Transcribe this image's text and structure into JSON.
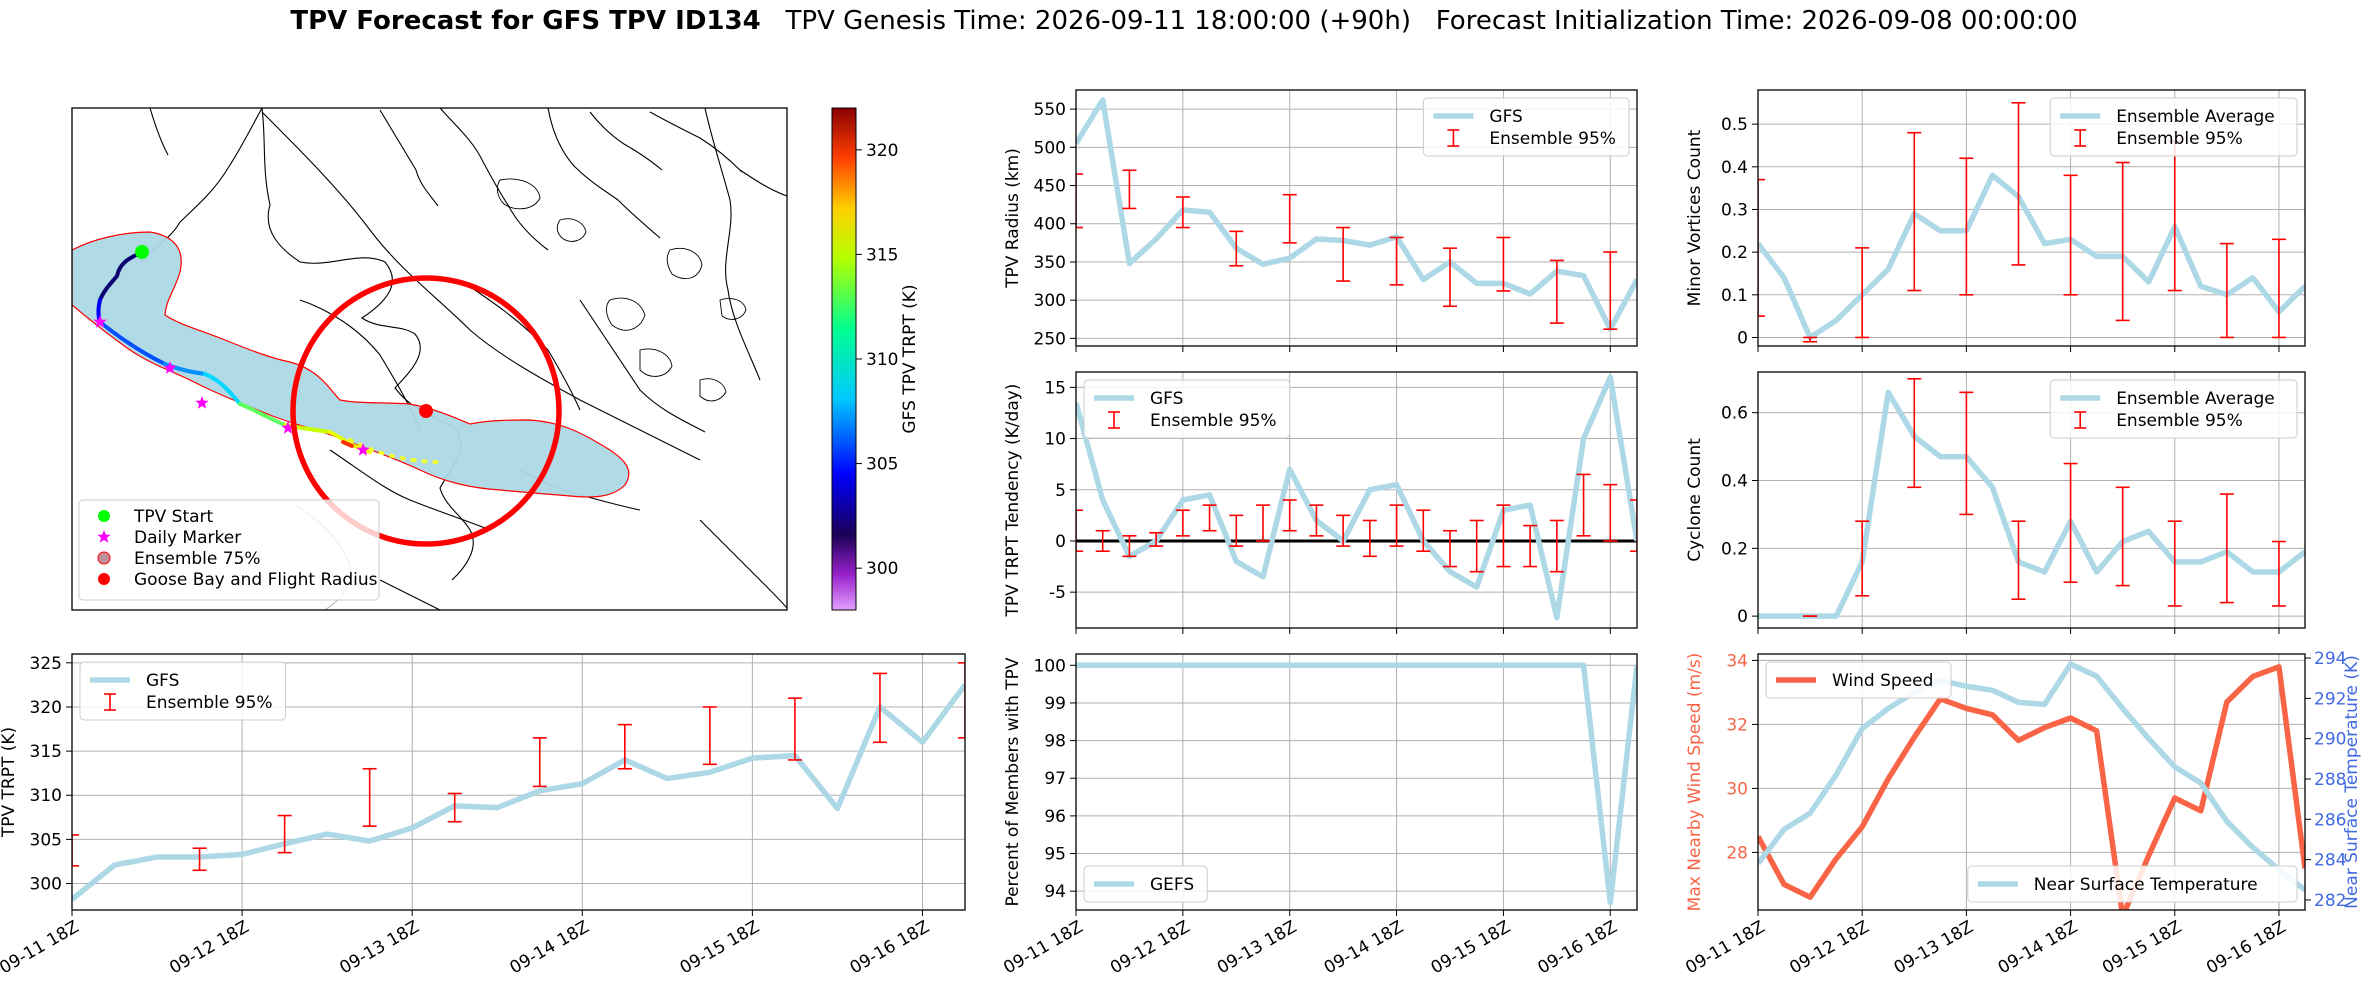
{
  "header": {
    "title_bold": "TPV Forecast for GFS TPV ID134",
    "title_genesis": "TPV Genesis Time: 2026-09-11 18:00:00 (+90h)",
    "title_init": "Forecast Initialization Time: 2026-09-08 00:00:00"
  },
  "colors": {
    "gfs_line": "#add8e6",
    "errorbar": "#ff0000",
    "wind": "#fa6446",
    "temp_axis": "#4169e1",
    "land_fill": "#add8e6"
  },
  "time_ticks": [
    "09-11 18Z",
    "09-12 18Z",
    "09-13 18Z",
    "09-14 18Z",
    "09-15 18Z",
    "09-16 18Z"
  ],
  "chart_data": [
    {
      "id": "map",
      "type": "map",
      "colorbar": {
        "label": "GFS TPV TRPT (K)",
        "ticks": [
          300,
          305,
          310,
          315,
          320
        ],
        "range": [
          298,
          322
        ]
      },
      "legend": {
        "placement": "lower-left",
        "entries": [
          {
            "label": "TPV Start",
            "marker": "circle",
            "color": "#00ff00"
          },
          {
            "label": "Daily Marker",
            "marker": "star",
            "color": "#ff00ff"
          },
          {
            "label": "Ensemble 75%",
            "marker": "circle",
            "color": "#c0909a"
          },
          {
            "label": "Goose Bay and Flight Radius",
            "marker": "circle",
            "color": "#ff0000"
          }
        ]
      }
    },
    {
      "id": "trpt",
      "type": "line",
      "ylabel": "TPV TRPT (K)",
      "ylim": [
        297,
        326
      ],
      "yticks": [
        300,
        305,
        310,
        315,
        320,
        325
      ],
      "legend_placement": "upper-left",
      "series": [
        {
          "name": "GFS",
          "values": [
            298.2,
            302.1,
            303.0,
            303.0,
            303.3,
            304.5,
            305.6,
            304.8,
            306.3,
            308.8,
            308.6,
            310.5,
            311.3,
            314.0,
            311.9,
            312.6,
            314.2,
            314.5,
            308.5,
            320.0,
            316.0,
            322.5
          ]
        }
      ],
      "errorbars": {
        "name": "Ensemble 95%",
        "points": [
          {
            "x": 0,
            "low": 302.0,
            "high": 305.5
          },
          {
            "x": 3,
            "low": 301.5,
            "high": 304.0
          },
          {
            "x": 5,
            "low": 303.5,
            "high": 307.7
          },
          {
            "x": 7,
            "low": 306.5,
            "high": 313.0
          },
          {
            "x": 9,
            "low": 307.0,
            "high": 310.2
          },
          {
            "x": 11,
            "low": 311.0,
            "high": 316.5
          },
          {
            "x": 13,
            "low": 313.0,
            "high": 318.0
          },
          {
            "x": 15,
            "low": 313.5,
            "high": 320.0
          },
          {
            "x": 17,
            "low": 314.0,
            "high": 321.0
          },
          {
            "x": 19,
            "low": 316.0,
            "high": 323.8
          },
          {
            "x": 21,
            "low": 316.5,
            "high": 325.0
          }
        ]
      }
    },
    {
      "id": "radius",
      "type": "line",
      "ylabel": "TPV Radius (km)",
      "ylim": [
        240,
        575
      ],
      "yticks": [
        250,
        300,
        350,
        400,
        450,
        500,
        550
      ],
      "legend_placement": "upper-right",
      "series": [
        {
          "name": "GFS",
          "values": [
            505,
            562,
            348,
            380,
            418,
            415,
            368,
            347,
            355,
            380,
            378,
            372,
            383,
            327,
            350,
            322,
            322,
            308,
            338,
            332,
            262,
            327
          ]
        }
      ],
      "errorbars": {
        "name": "Ensemble 95%",
        "points": [
          {
            "x": 0,
            "low": 395,
            "high": 465
          },
          {
            "x": 2,
            "low": 420,
            "high": 470
          },
          {
            "x": 4,
            "low": 395,
            "high": 435
          },
          {
            "x": 6,
            "low": 345,
            "high": 390
          },
          {
            "x": 8,
            "low": 375,
            "high": 438
          },
          {
            "x": 10,
            "low": 325,
            "high": 395
          },
          {
            "x": 12,
            "low": 320,
            "high": 382
          },
          {
            "x": 14,
            "low": 292,
            "high": 368
          },
          {
            "x": 16,
            "low": 312,
            "high": 382
          },
          {
            "x": 18,
            "low": 270,
            "high": 352
          },
          {
            "x": 20,
            "low": 262,
            "high": 363
          }
        ]
      }
    },
    {
      "id": "tendency",
      "type": "line",
      "ylabel": "TPV TRPT Tendency (K/day)",
      "ylim": [
        -8.5,
        16.5
      ],
      "yticks": [
        -5,
        0,
        5,
        10,
        15
      ],
      "zero_line": true,
      "legend_placement": "upper-left",
      "series": [
        {
          "name": "GFS",
          "values": [
            13.5,
            4.0,
            -1.5,
            0.0,
            4.0,
            4.5,
            -2.0,
            -3.5,
            7.0,
            2.0,
            0.0,
            5.0,
            5.5,
            0.0,
            -3.0,
            -4.5,
            3.0,
            3.5,
            -7.5,
            10.0,
            16.0,
            0.0
          ]
        }
      ],
      "errorbars": {
        "name": "Ensemble 95%",
        "points": [
          {
            "x": 0,
            "low": -1.0,
            "high": 3.0
          },
          {
            "x": 1,
            "low": -1.0,
            "high": 1.0
          },
          {
            "x": 2,
            "low": -1.5,
            "high": 0.5
          },
          {
            "x": 3,
            "low": -0.5,
            "high": 0.8
          },
          {
            "x": 4,
            "low": 0.5,
            "high": 3.0
          },
          {
            "x": 5,
            "low": 1.0,
            "high": 3.5
          },
          {
            "x": 6,
            "low": -0.5,
            "high": 2.5
          },
          {
            "x": 7,
            "low": 0.0,
            "high": 3.5
          },
          {
            "x": 8,
            "low": 1.0,
            "high": 4.0
          },
          {
            "x": 9,
            "low": 0.5,
            "high": 3.5
          },
          {
            "x": 10,
            "low": -0.5,
            "high": 2.5
          },
          {
            "x": 11,
            "low": -1.5,
            "high": 2.0
          },
          {
            "x": 12,
            "low": -0.5,
            "high": 3.5
          },
          {
            "x": 13,
            "low": -1.0,
            "high": 3.0
          },
          {
            "x": 14,
            "low": -2.5,
            "high": 1.0
          },
          {
            "x": 15,
            "low": -3.0,
            "high": 2.0
          },
          {
            "x": 16,
            "low": -2.5,
            "high": 3.5
          },
          {
            "x": 17,
            "low": -2.5,
            "high": 1.5
          },
          {
            "x": 18,
            "low": -3.0,
            "high": 2.0
          },
          {
            "x": 19,
            "low": 0.5,
            "high": 6.5
          },
          {
            "x": 20,
            "low": 0.0,
            "high": 5.5
          },
          {
            "x": 21,
            "low": -1.0,
            "high": 4.0
          }
        ]
      }
    },
    {
      "id": "percent",
      "type": "line",
      "ylabel": "Percent of Members with TPV",
      "ylim": [
        93.5,
        100.3
      ],
      "yticks": [
        94,
        95,
        96,
        97,
        98,
        99,
        100
      ],
      "legend_placement": "lower-left",
      "series": [
        {
          "name": "GEFS",
          "values": [
            100,
            100,
            100,
            100,
            100,
            100,
            100,
            100,
            100,
            100,
            100,
            100,
            100,
            100,
            100,
            100,
            100,
            100,
            100,
            100,
            93.7,
            100
          ]
        }
      ]
    },
    {
      "id": "minor",
      "type": "line",
      "ylabel": "Minor Vortices Count",
      "ylim": [
        -0.02,
        0.58
      ],
      "yticks": [
        0.0,
        0.1,
        0.2,
        0.3,
        0.4,
        0.5
      ],
      "legend_placement": "upper-right",
      "series": [
        {
          "name": "Ensemble Average",
          "values": [
            0.22,
            0.14,
            0.0,
            0.04,
            0.1,
            0.16,
            0.29,
            0.25,
            0.25,
            0.38,
            0.33,
            0.22,
            0.23,
            0.19,
            0.19,
            0.13,
            0.26,
            0.12,
            0.1,
            0.14,
            0.06,
            0.12
          ]
        }
      ],
      "errorbars": {
        "name": "Ensemble 95%",
        "points": [
          {
            "x": 0,
            "low": 0.05,
            "high": 0.37
          },
          {
            "x": 2,
            "low": -0.01,
            "high": 0.0
          },
          {
            "x": 4,
            "low": 0.0,
            "high": 0.21
          },
          {
            "x": 6,
            "low": 0.11,
            "high": 0.48
          },
          {
            "x": 8,
            "low": 0.1,
            "high": 0.42
          },
          {
            "x": 10,
            "low": 0.17,
            "high": 0.55
          },
          {
            "x": 12,
            "low": 0.1,
            "high": 0.38
          },
          {
            "x": 14,
            "low": 0.04,
            "high": 0.41
          },
          {
            "x": 16,
            "low": 0.11,
            "high": 0.46
          },
          {
            "x": 18,
            "low": 0.0,
            "high": 0.22
          },
          {
            "x": 20,
            "low": 0.0,
            "high": 0.23
          }
        ]
      }
    },
    {
      "id": "cyclone",
      "type": "line",
      "ylabel": "Cyclone Count",
      "ylim": [
        -0.035,
        0.72
      ],
      "yticks": [
        0.0,
        0.2,
        0.4,
        0.6
      ],
      "legend_placement": "upper-right",
      "series": [
        {
          "name": "Ensemble Average",
          "values": [
            0.0,
            0.0,
            0.0,
            0.0,
            0.16,
            0.66,
            0.53,
            0.47,
            0.47,
            0.38,
            0.16,
            0.13,
            0.28,
            0.13,
            0.22,
            0.25,
            0.16,
            0.16,
            0.19,
            0.13,
            0.13,
            0.19
          ]
        }
      ],
      "errorbars": {
        "name": "Ensemble 95%",
        "points": [
          {
            "x": 2,
            "low": 0.0,
            "high": 0.0
          },
          {
            "x": 4,
            "low": 0.06,
            "high": 0.28
          },
          {
            "x": 6,
            "low": 0.38,
            "high": 0.7
          },
          {
            "x": 8,
            "low": 0.3,
            "high": 0.66
          },
          {
            "x": 10,
            "low": 0.05,
            "high": 0.28
          },
          {
            "x": 12,
            "low": 0.1,
            "high": 0.45
          },
          {
            "x": 14,
            "low": 0.09,
            "high": 0.38
          },
          {
            "x": 16,
            "low": 0.03,
            "high": 0.28
          },
          {
            "x": 18,
            "low": 0.04,
            "high": 0.36
          },
          {
            "x": 20,
            "low": 0.03,
            "high": 0.22
          }
        ]
      }
    },
    {
      "id": "wind",
      "type": "line",
      "ylabel": "Max Nearby Wind Speed (m/s)",
      "ylim": [
        26.2,
        34.2
      ],
      "yticks": [
        28,
        30,
        32,
        34
      ],
      "legend_placement": "upper-left",
      "series": [
        {
          "name": "Wind Speed",
          "values": [
            28.5,
            27.0,
            26.6,
            27.8,
            28.8,
            30.3,
            31.6,
            32.8,
            32.5,
            32.3,
            31.5,
            31.9,
            32.2,
            31.8,
            26.0,
            27.9,
            29.7,
            29.3,
            32.7,
            33.5,
            33.8,
            27.5
          ]
        }
      ],
      "y2label": "Near Surface Temperature (K)",
      "y2lim": [
        281.5,
        294.2
      ],
      "y2ticks": [
        282,
        284,
        286,
        288,
        290,
        292,
        294
      ],
      "series2": [
        {
          "name": "Near Surface Temperature",
          "values": [
            283.8,
            285.5,
            286.3,
            288.2,
            290.5,
            291.5,
            292.3,
            292.9,
            292.6,
            292.4,
            291.8,
            291.7,
            293.7,
            293.1,
            291.5,
            290.0,
            288.6,
            287.8,
            285.9,
            284.6,
            283.5,
            282.5
          ]
        }
      ],
      "legend2_placement": "lower-right"
    }
  ]
}
